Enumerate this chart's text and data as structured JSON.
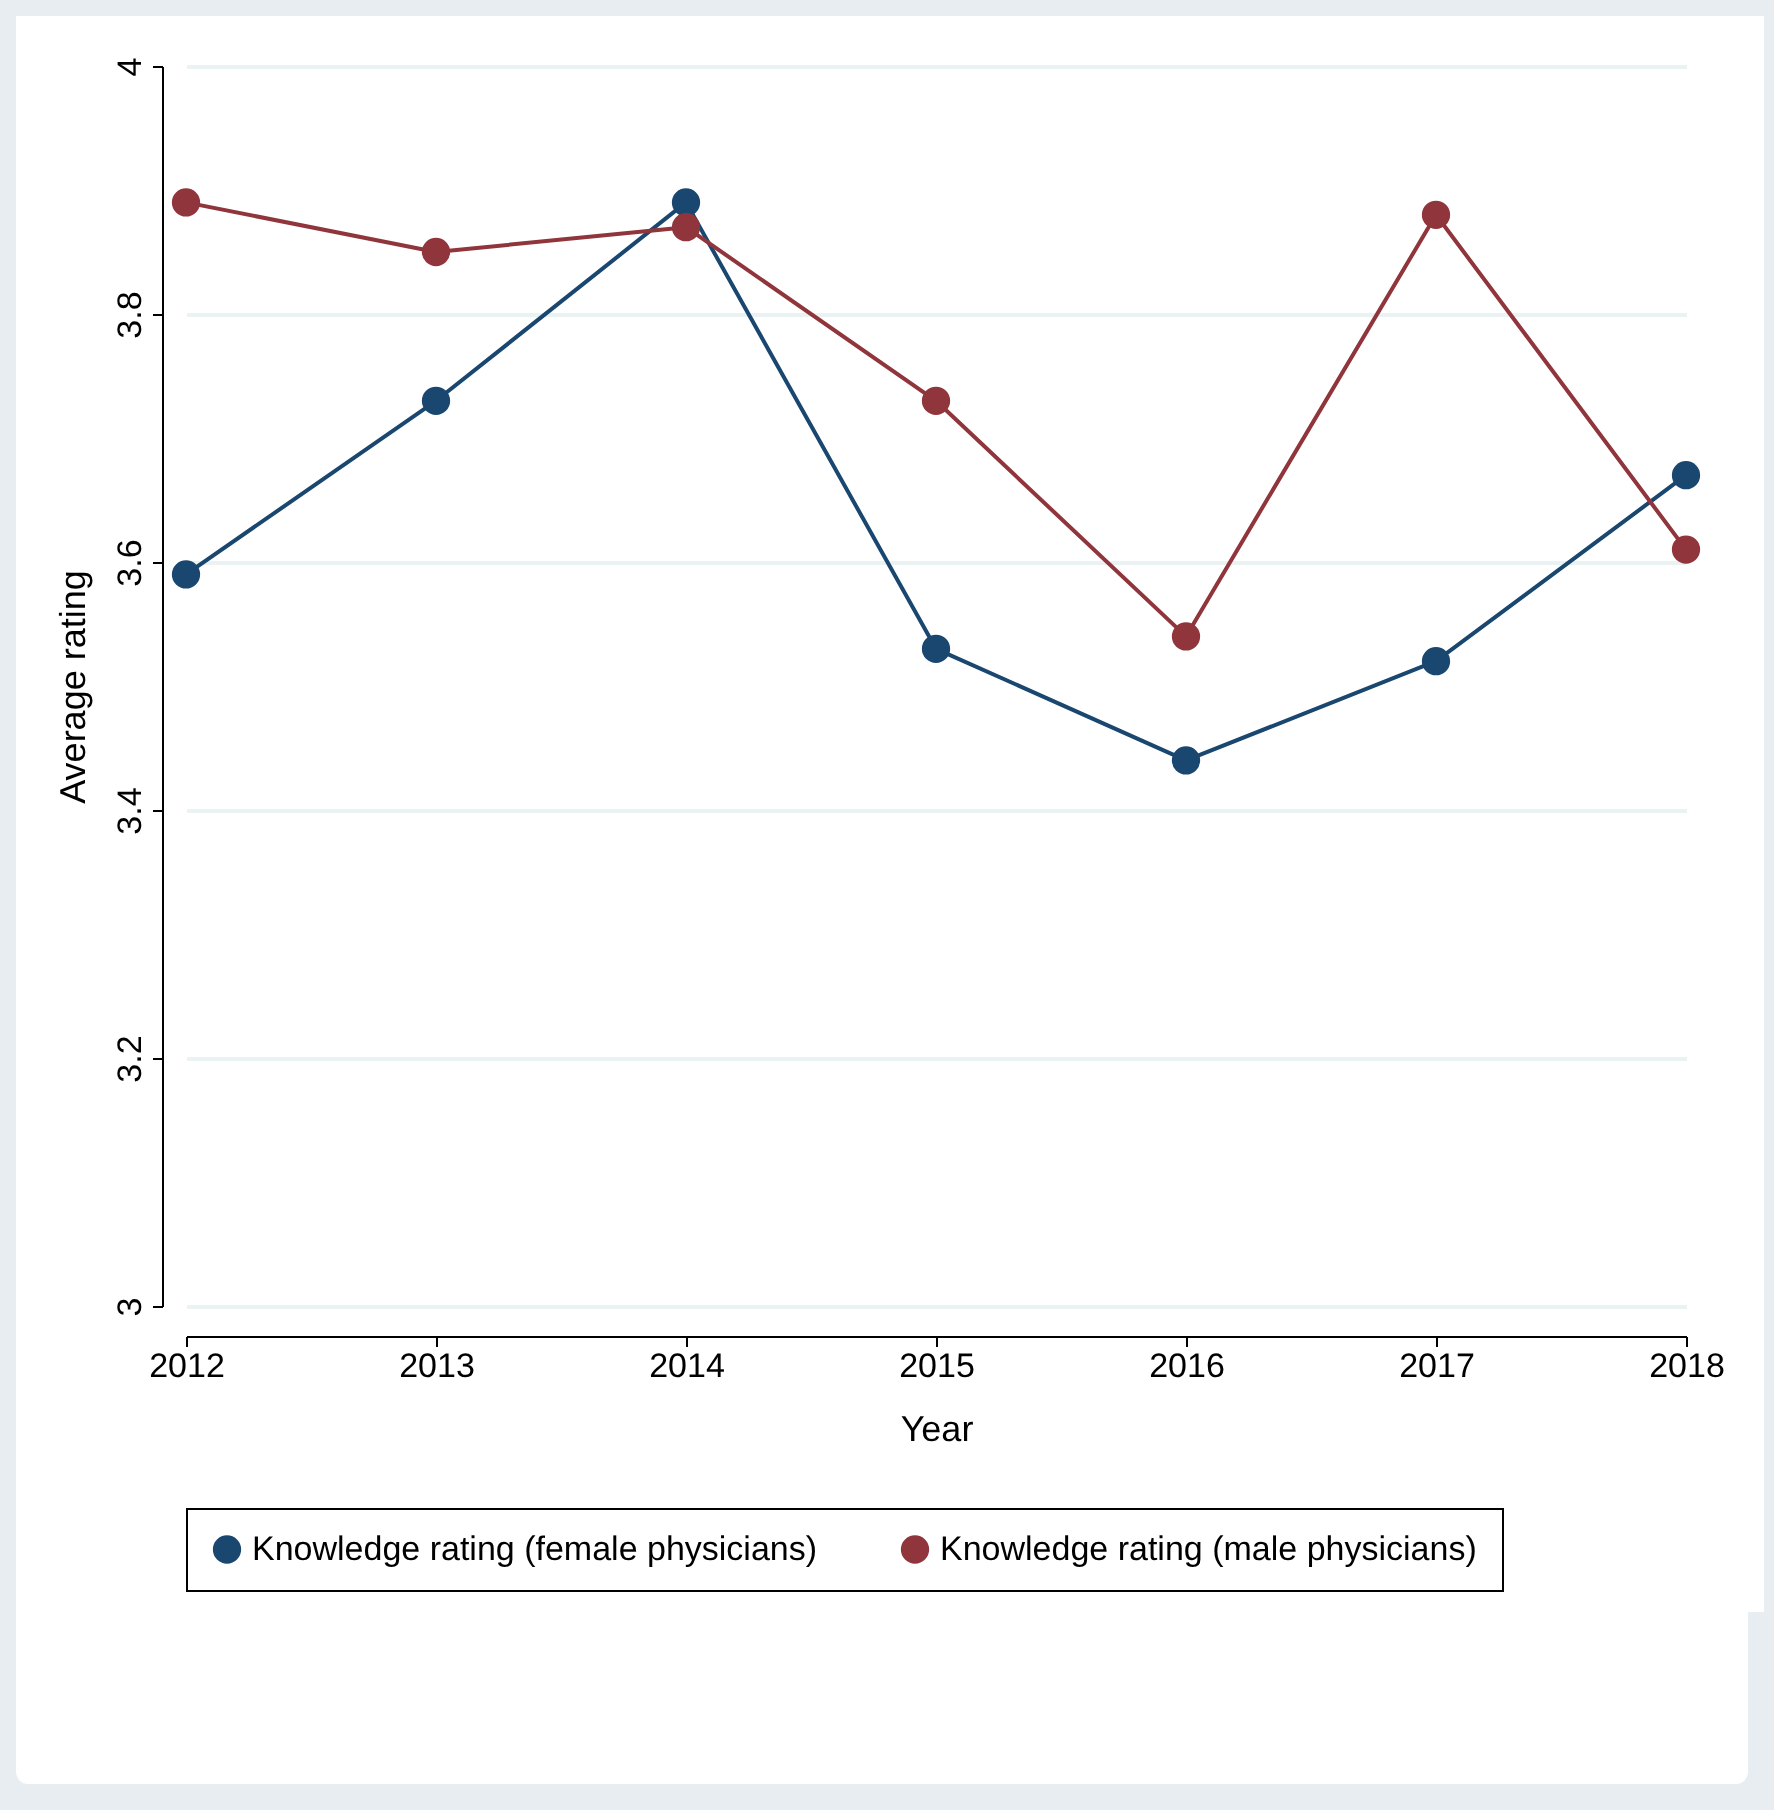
{
  "chart_data": {
    "type": "line",
    "xlabel": "Year",
    "ylabel": "Average rating",
    "x": [
      2012,
      2013,
      2014,
      2015,
      2016,
      2017,
      2018
    ],
    "series": [
      {
        "name": "Knowledge rating (female physicians)",
        "color": "#1a476f",
        "values": [
          3.59,
          3.73,
          3.89,
          3.53,
          3.44,
          3.52,
          3.67
        ]
      },
      {
        "name": "Knowledge rating (male physicians)",
        "color": "#90353b",
        "values": [
          3.89,
          3.85,
          3.87,
          3.73,
          3.54,
          3.88,
          3.61
        ]
      }
    ],
    "xlim": [
      2012,
      2018
    ],
    "xticks": [
      2012,
      2013,
      2014,
      2015,
      2016,
      2017,
      2018
    ],
    "ylim": [
      3,
      4
    ],
    "yticks": [
      3,
      3.2,
      3.4,
      3.6,
      3.8,
      4
    ],
    "grid": "y",
    "legend": "bottom",
    "marker": "circle",
    "line_style": "solid"
  }
}
